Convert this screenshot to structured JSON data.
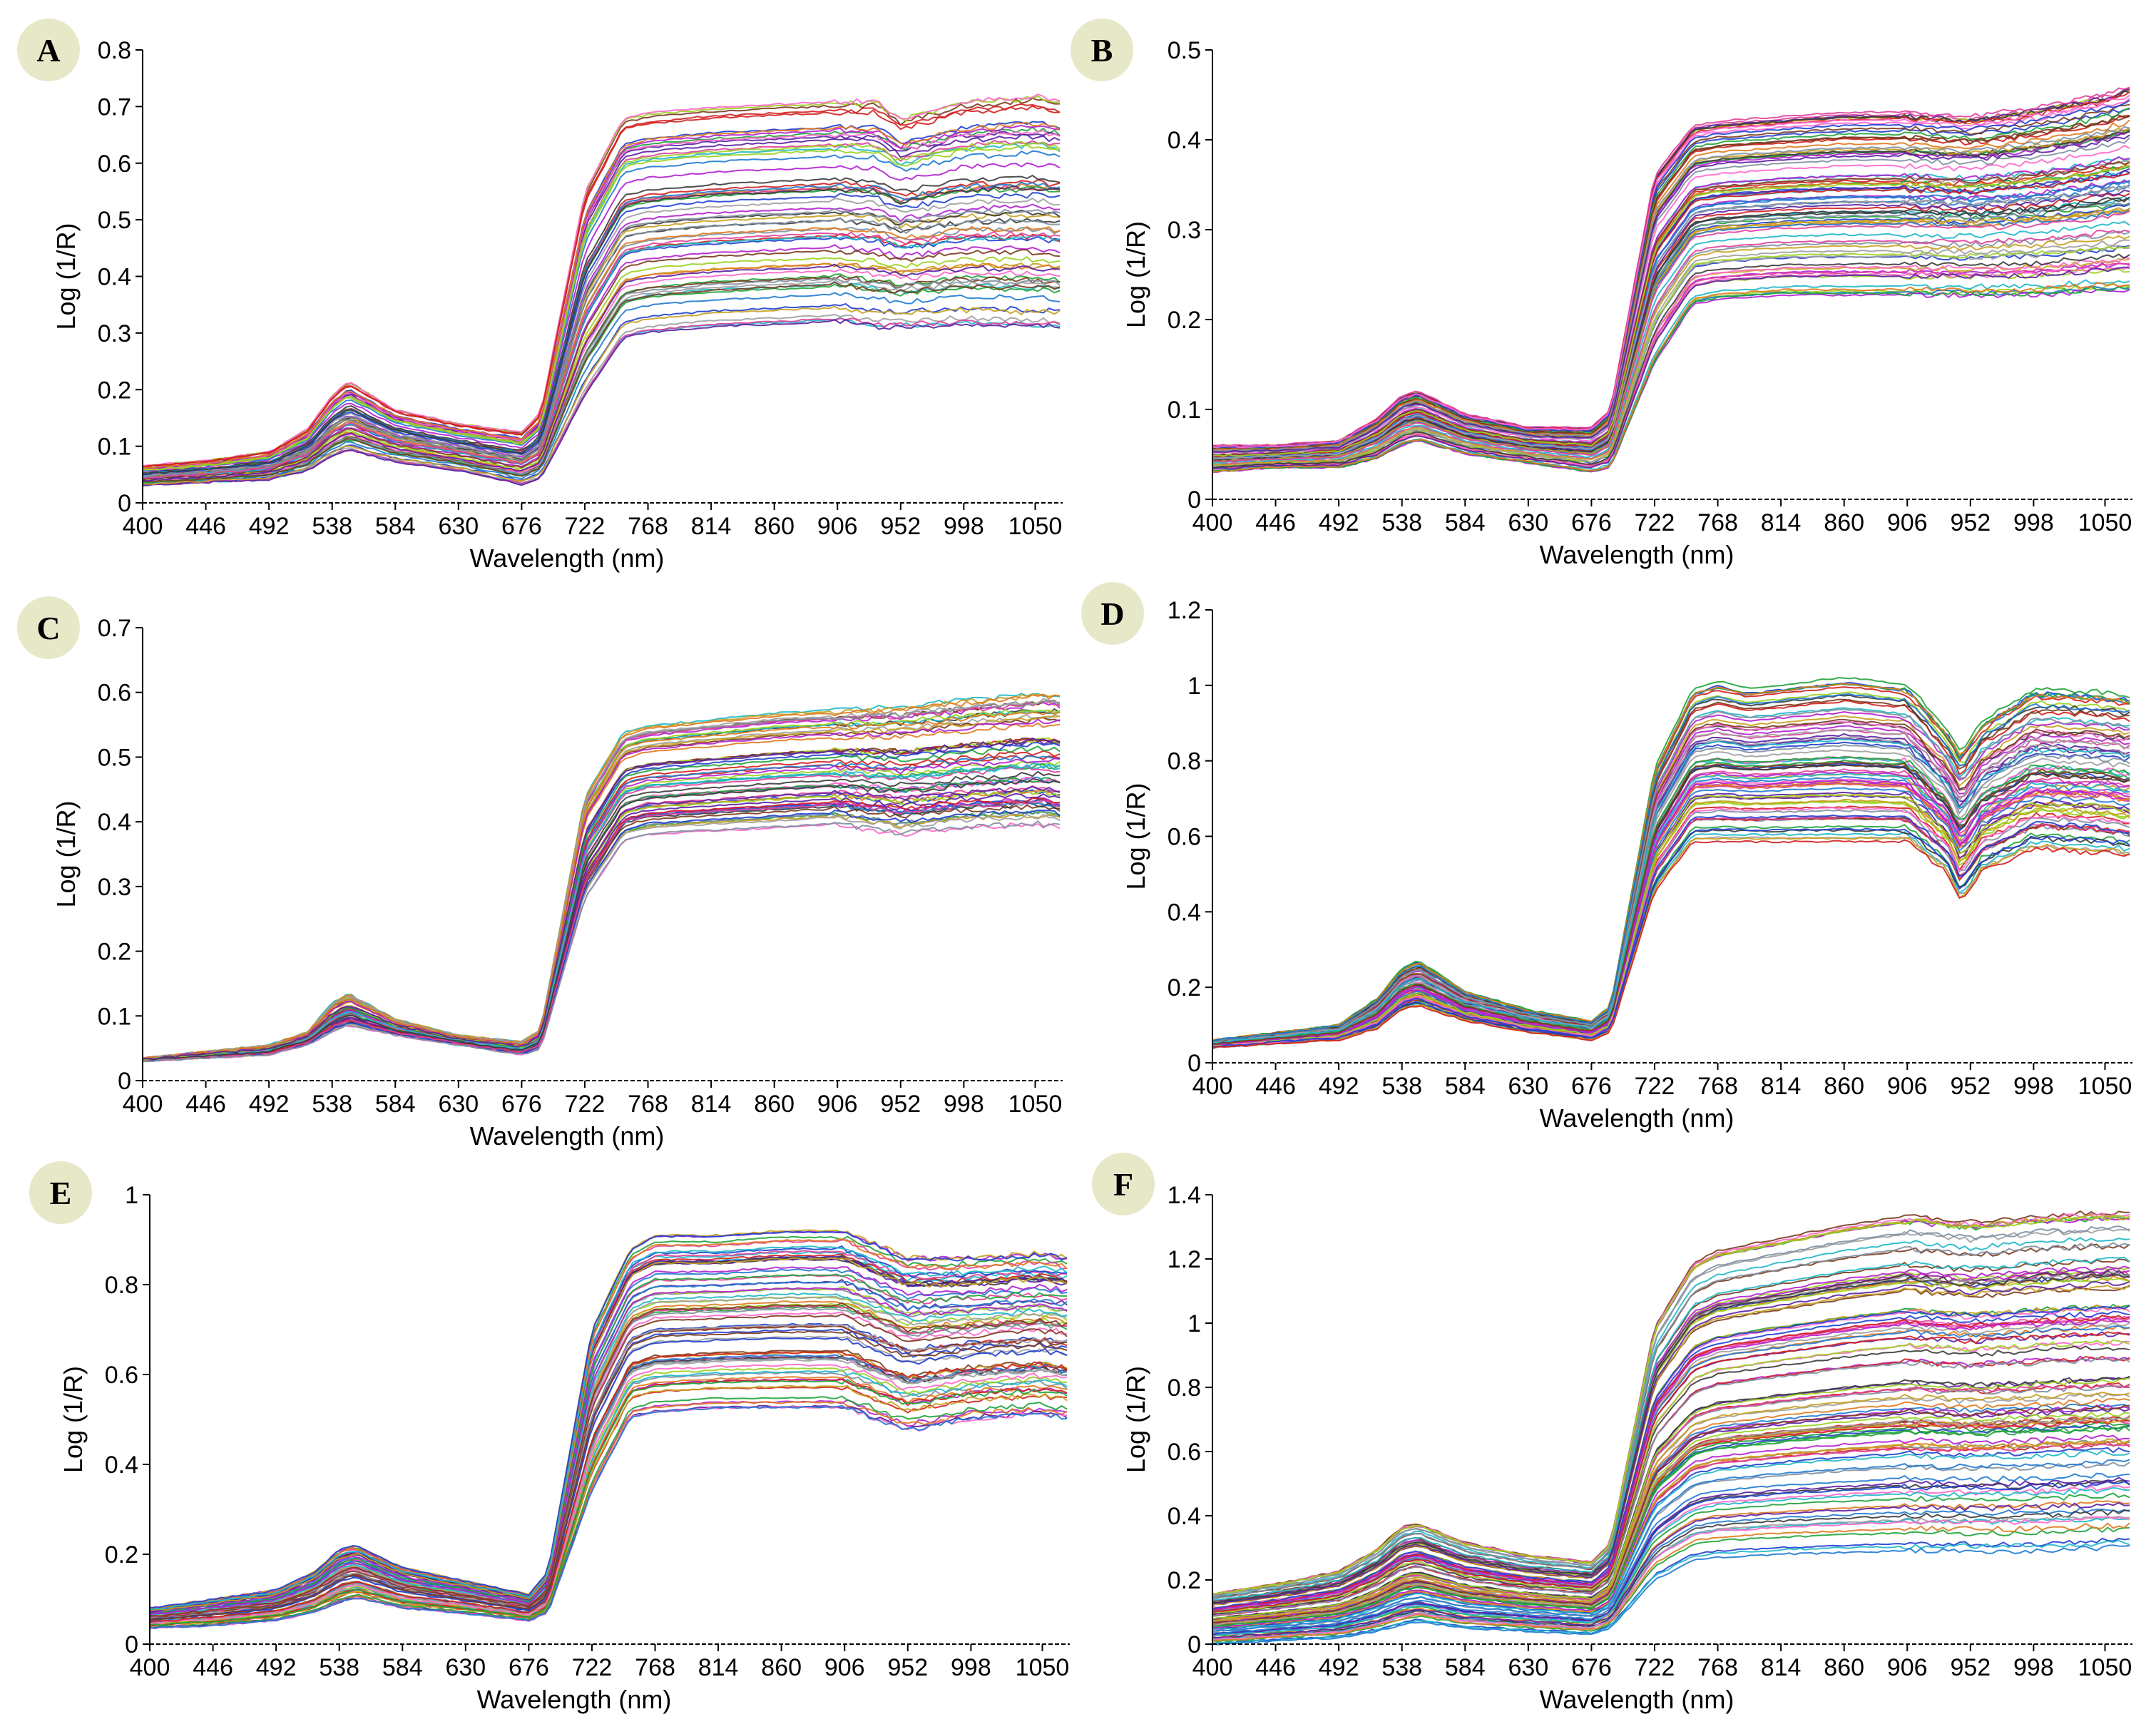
{
  "figure": {
    "description_free": true,
    "badge_color": "#e6e8c8",
    "curve_palette": [
      "#1f3fd1",
      "#d11f1f",
      "#1fa33a",
      "#b41fd1",
      "#1fb8c8",
      "#7a3b1f",
      "#e07a1f",
      "#e0409a",
      "#3b3b3b",
      "#7f8fa0",
      "#9ad11f",
      "#5a1fa3",
      "#1f7ad1",
      "#c8a01f",
      "#a0a0a0",
      "#ff66cc"
    ]
  },
  "chart_data": [
    {
      "id": "A",
      "type": "line",
      "panel_label": "A",
      "xlabel": "Wavelength (nm)",
      "ylabel": "Log (1/R)",
      "xlim": [
        400,
        1070
      ],
      "ylim": [
        0,
        0.8
      ],
      "xticks": [
        "400",
        "446",
        "492",
        "538",
        "584",
        "630",
        "676",
        "722",
        "768",
        "814",
        "860",
        "906",
        "952",
        "998",
        "1050"
      ],
      "yticks": [
        "0",
        "0.1",
        "0.2",
        "0.3",
        "0.4",
        "0.5",
        "0.6",
        "0.7",
        "0.8"
      ],
      "series_count": 60,
      "envelope": {
        "wavelength": [
          400,
          446,
          492,
          520,
          538,
          550,
          584,
          630,
          676,
          690,
          722,
          750,
          768,
          814,
          860,
          906,
          935,
          952,
          998,
          1050,
          1070
        ],
        "low": [
          0.03,
          0.035,
          0.04,
          0.055,
          0.08,
          0.09,
          0.07,
          0.055,
          0.03,
          0.04,
          0.18,
          0.28,
          0.29,
          0.3,
          0.305,
          0.31,
          0.3,
          0.3,
          0.305,
          0.3,
          0.3
        ],
        "high": [
          0.065,
          0.075,
          0.09,
          0.13,
          0.19,
          0.215,
          0.165,
          0.14,
          0.125,
          0.16,
          0.55,
          0.68,
          0.69,
          0.7,
          0.705,
          0.71,
          0.71,
          0.68,
          0.71,
          0.72,
          0.71
        ]
      }
    },
    {
      "id": "B",
      "type": "line",
      "panel_label": "B",
      "xlabel": "Wavelength (nm)",
      "ylabel": "Log (1/R)",
      "xlim": [
        400,
        1070
      ],
      "ylim": [
        0,
        0.5
      ],
      "xticks": [
        "400",
        "446",
        "492",
        "538",
        "584",
        "630",
        "676",
        "722",
        "768",
        "814",
        "860",
        "906",
        "952",
        "998",
        "1050"
      ],
      "yticks": [
        "0",
        "0.1",
        "0.2",
        "0.3",
        "0.4",
        "0.5"
      ],
      "series_count": 80,
      "envelope": {
        "wavelength": [
          400,
          446,
          492,
          520,
          538,
          550,
          584,
          630,
          676,
          690,
          722,
          750,
          768,
          814,
          860,
          906,
          952,
          998,
          1050,
          1070
        ],
        "low": [
          0.03,
          0.035,
          0.035,
          0.045,
          0.06,
          0.065,
          0.05,
          0.04,
          0.03,
          0.035,
          0.15,
          0.215,
          0.22,
          0.225,
          0.225,
          0.225,
          0.225,
          0.225,
          0.23,
          0.23
        ],
        "high": [
          0.06,
          0.06,
          0.065,
          0.09,
          0.115,
          0.12,
          0.095,
          0.08,
          0.08,
          0.1,
          0.36,
          0.415,
          0.42,
          0.425,
          0.43,
          0.43,
          0.425,
          0.435,
          0.45,
          0.46
        ]
      }
    },
    {
      "id": "C",
      "type": "line",
      "panel_label": "C",
      "xlabel": "Wavelength (nm)",
      "ylabel": "Log (1/R)",
      "xlim": [
        400,
        1070
      ],
      "ylim": [
        0,
        0.7
      ],
      "xticks": [
        "400",
        "446",
        "492",
        "538",
        "584",
        "630",
        "676",
        "722",
        "768",
        "814",
        "860",
        "906",
        "952",
        "998",
        "1050"
      ],
      "yticks": [
        "0",
        "0.1",
        "0.2",
        "0.3",
        "0.4",
        "0.5",
        "0.6",
        "0.7"
      ],
      "series_count": 60,
      "envelope": {
        "wavelength": [
          400,
          446,
          492,
          520,
          538,
          550,
          584,
          630,
          676,
          690,
          722,
          750,
          768,
          814,
          860,
          906,
          952,
          998,
          1050,
          1070
        ],
        "low": [
          0.03,
          0.035,
          0.04,
          0.055,
          0.075,
          0.085,
          0.07,
          0.055,
          0.04,
          0.05,
          0.28,
          0.37,
          0.38,
          0.385,
          0.39,
          0.395,
          0.38,
          0.39,
          0.395,
          0.39
        ],
        "high": [
          0.035,
          0.045,
          0.055,
          0.075,
          0.12,
          0.135,
          0.095,
          0.07,
          0.06,
          0.08,
          0.44,
          0.54,
          0.55,
          0.56,
          0.57,
          0.575,
          0.58,
          0.59,
          0.6,
          0.6
        ]
      }
    },
    {
      "id": "D",
      "type": "line",
      "panel_label": "D",
      "xlabel": "Wavelength (nm)",
      "ylabel": "Log (1/R)",
      "xlim": [
        400,
        1070
      ],
      "ylim": [
        0,
        1.2
      ],
      "xticks": [
        "400",
        "446",
        "492",
        "538",
        "584",
        "630",
        "676",
        "722",
        "768",
        "814",
        "860",
        "906",
        "952",
        "998",
        "1050"
      ],
      "yticks": [
        "0",
        "0.2",
        "0.4",
        "0.6",
        "0.8",
        "1",
        "1.2"
      ],
      "series_count": 70,
      "envelope": {
        "wavelength": [
          400,
          446,
          492,
          520,
          538,
          550,
          584,
          630,
          676,
          690,
          722,
          750,
          768,
          790,
          814,
          860,
          906,
          935,
          945,
          960,
          998,
          1050,
          1070
        ],
        "low": [
          0.04,
          0.05,
          0.06,
          0.09,
          0.14,
          0.15,
          0.11,
          0.08,
          0.06,
          0.08,
          0.45,
          0.58,
          0.58,
          0.58,
          0.58,
          0.58,
          0.58,
          0.5,
          0.42,
          0.5,
          0.56,
          0.55,
          0.54
        ],
        "high": [
          0.06,
          0.08,
          0.1,
          0.17,
          0.25,
          0.27,
          0.19,
          0.14,
          0.11,
          0.15,
          0.78,
          0.99,
          1.01,
          0.99,
          1.0,
          1.02,
          1.0,
          0.88,
          0.82,
          0.9,
          0.99,
          0.98,
          0.97
        ]
      }
    },
    {
      "id": "E",
      "type": "line",
      "panel_label": "E",
      "xlabel": "Wavelength (nm)",
      "ylabel": "Log (1/R)",
      "xlim": [
        400,
        1070
      ],
      "ylim": [
        0,
        1
      ],
      "xticks": [
        "400",
        "446",
        "492",
        "538",
        "584",
        "630",
        "676",
        "722",
        "768",
        "814",
        "860",
        "906",
        "952",
        "998",
        "1050"
      ],
      "yticks": [
        "0",
        "0.2",
        "0.4",
        "0.6",
        "0.8",
        "1"
      ],
      "series_count": 70,
      "envelope": {
        "wavelength": [
          400,
          446,
          492,
          520,
          538,
          550,
          584,
          630,
          676,
          690,
          722,
          750,
          768,
          814,
          860,
          906,
          952,
          998,
          1050,
          1070
        ],
        "low": [
          0.03,
          0.035,
          0.045,
          0.06,
          0.08,
          0.09,
          0.07,
          0.06,
          0.045,
          0.06,
          0.3,
          0.46,
          0.47,
          0.48,
          0.48,
          0.48,
          0.43,
          0.46,
          0.47,
          0.46
        ],
        "high": [
          0.08,
          0.1,
          0.12,
          0.16,
          0.21,
          0.22,
          0.17,
          0.14,
          0.11,
          0.16,
          0.7,
          0.88,
          0.91,
          0.91,
          0.92,
          0.92,
          0.86,
          0.86,
          0.87,
          0.86
        ]
      }
    },
    {
      "id": "F",
      "type": "line",
      "panel_label": "F",
      "xlabel": "Wavelength (nm)",
      "ylabel": "Log (1/R)",
      "xlim": [
        400,
        1070
      ],
      "ylim": [
        0,
        1.4
      ],
      "xticks": [
        "400",
        "446",
        "492",
        "538",
        "584",
        "630",
        "676",
        "722",
        "768",
        "814",
        "860",
        "906",
        "952",
        "998",
        "1050"
      ],
      "yticks": [
        "0",
        "0.2",
        "0.4",
        "0.6",
        "0.8",
        "1",
        "1.2",
        "1.4"
      ],
      "series_count": 100,
      "envelope": {
        "wavelength": [
          400,
          446,
          492,
          520,
          538,
          550,
          584,
          630,
          676,
          690,
          722,
          750,
          768,
          814,
          860,
          906,
          952,
          998,
          1050,
          1070
        ],
        "low": [
          0.0,
          0.01,
          0.02,
          0.04,
          0.06,
          0.07,
          0.05,
          0.04,
          0.03,
          0.05,
          0.2,
          0.26,
          0.27,
          0.28,
          0.285,
          0.29,
          0.29,
          0.29,
          0.3,
          0.3
        ],
        "high": [
          0.16,
          0.19,
          0.23,
          0.3,
          0.37,
          0.38,
          0.32,
          0.28,
          0.26,
          0.32,
          1.0,
          1.2,
          1.24,
          1.28,
          1.32,
          1.35,
          1.33,
          1.35,
          1.36,
          1.36
        ]
      }
    }
  ]
}
